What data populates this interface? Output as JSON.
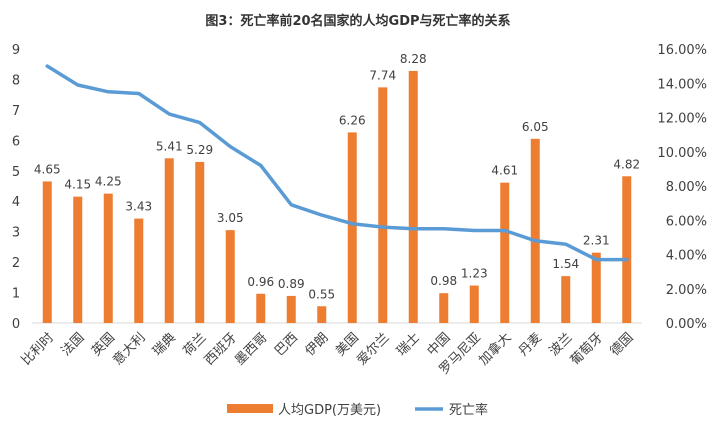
{
  "chart_data": {
    "type": "bar+line",
    "title": "图3：死亡率前20名国家的人均GDP与死亡率的关系",
    "categories": [
      "比利时",
      "法国",
      "英国",
      "意大利",
      "瑞典",
      "荷兰",
      "西班牙",
      "墨西哥",
      "巴西",
      "伊朗",
      "美国",
      "爱尔兰",
      "瑞士",
      "中国",
      "罗马尼亚",
      "加拿大",
      "丹麦",
      "波兰",
      "葡萄牙",
      "德国"
    ],
    "series": [
      {
        "name": "人均GDP(万美元)",
        "type": "bar",
        "axis": "left",
        "color": "#ED7D31",
        "values": [
          4.65,
          4.15,
          4.25,
          3.43,
          5.41,
          5.29,
          3.05,
          0.96,
          0.89,
          0.55,
          6.26,
          7.74,
          8.28,
          0.98,
          1.23,
          4.61,
          6.05,
          1.54,
          2.31,
          4.82
        ],
        "labels": [
          "4.65",
          "4.15",
          "4.25",
          "3.43",
          "5.41",
          "5.29",
          "3.05",
          "0.96",
          "0.89",
          "0.55",
          "6.26",
          "7.74",
          "8.28",
          "0.98",
          "1.23",
          "4.61",
          "6.05",
          "1.54",
          "2.31",
          "4.82"
        ]
      },
      {
        "name": "死亡率",
        "type": "line",
        "axis": "right",
        "color": "#5B9BD5",
        "values": [
          15.0,
          13.9,
          13.5,
          13.4,
          12.2,
          11.7,
          10.3,
          9.2,
          6.9,
          6.3,
          5.8,
          5.6,
          5.5,
          5.5,
          5.4,
          5.4,
          4.8,
          4.6,
          3.7,
          3.7
        ]
      }
    ],
    "y_left": {
      "min": 0,
      "max": 9,
      "ticks": [
        "0",
        "1",
        "2",
        "3",
        "4",
        "5",
        "6",
        "7",
        "8",
        "9"
      ]
    },
    "y_right": {
      "min": 0,
      "max": 16,
      "ticks": [
        "0.00%",
        "2.00%",
        "4.00%",
        "6.00%",
        "8.00%",
        "10.00%",
        "12.00%",
        "14.00%",
        "16.00%"
      ]
    },
    "grid": false,
    "legend_position": "bottom"
  }
}
